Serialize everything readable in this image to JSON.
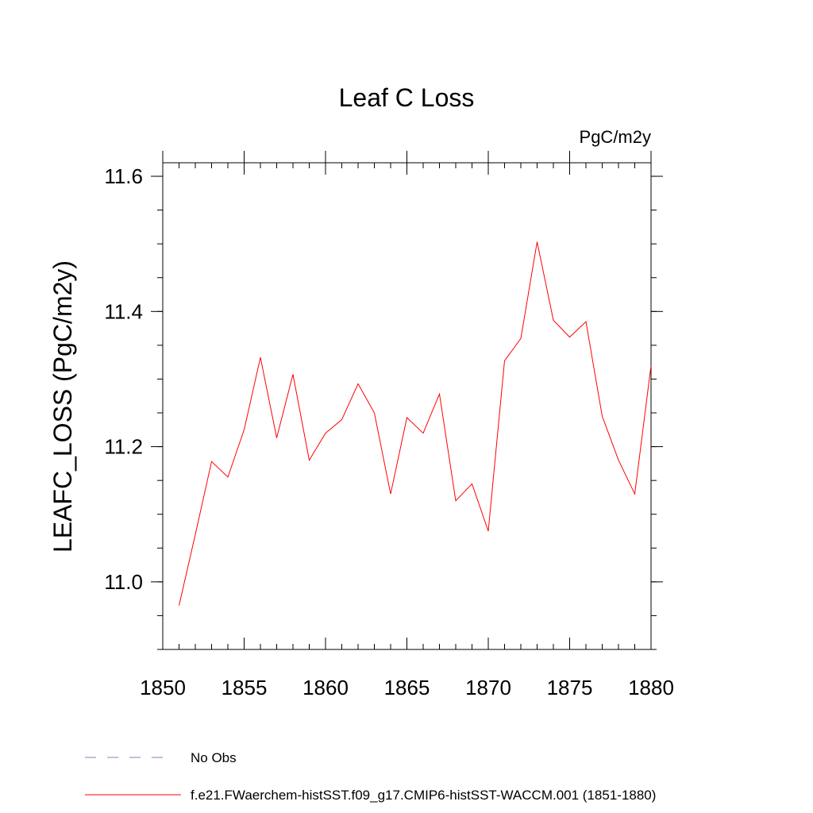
{
  "chart_data": {
    "type": "line",
    "title": "Leaf C Loss",
    "units": "PgC/m2y",
    "ylabel": "LEAFC_LOSS  (PgC/m2y)",
    "xlabel": "",
    "xlim": [
      1850,
      1880
    ],
    "ylim": [
      10.9,
      11.62
    ],
    "x_ticks": [
      "1850",
      "1855",
      "1860",
      "1865",
      "1870",
      "1875",
      "1880"
    ],
    "y_ticks": [
      "11.0",
      "11.2",
      "11.4",
      "11.6"
    ],
    "series": [
      {
        "name": "f.e21.FWaerchem-histSST.f09_g17.CMIP6-histSST-WACCM.001 (1851-1880)",
        "color": "#ff0000",
        "style": "solid",
        "x": [
          1851,
          1852,
          1853,
          1854,
          1855,
          1856,
          1857,
          1858,
          1859,
          1860,
          1861,
          1862,
          1863,
          1864,
          1865,
          1866,
          1867,
          1868,
          1869,
          1870,
          1871,
          1872,
          1873,
          1874,
          1875,
          1876,
          1877,
          1878,
          1879,
          1880
        ],
        "y": [
          10.965,
          11.07,
          11.178,
          11.155,
          11.225,
          11.332,
          11.213,
          11.307,
          11.18,
          11.22,
          11.24,
          11.293,
          11.25,
          11.13,
          11.243,
          11.22,
          11.278,
          11.12,
          11.145,
          11.075,
          11.327,
          11.36,
          11.503,
          11.387,
          11.362,
          11.385,
          11.245,
          11.18,
          11.13,
          11.32
        ]
      }
    ],
    "legend": [
      {
        "label": "No Obs",
        "color": "#8080c0",
        "style": "dashed"
      },
      {
        "label": "f.e21.FWaerchem-histSST.f09_g17.CMIP6-histSST-WACCM.001 (1851-1880)",
        "color": "#ff0000",
        "style": "solid"
      }
    ]
  }
}
